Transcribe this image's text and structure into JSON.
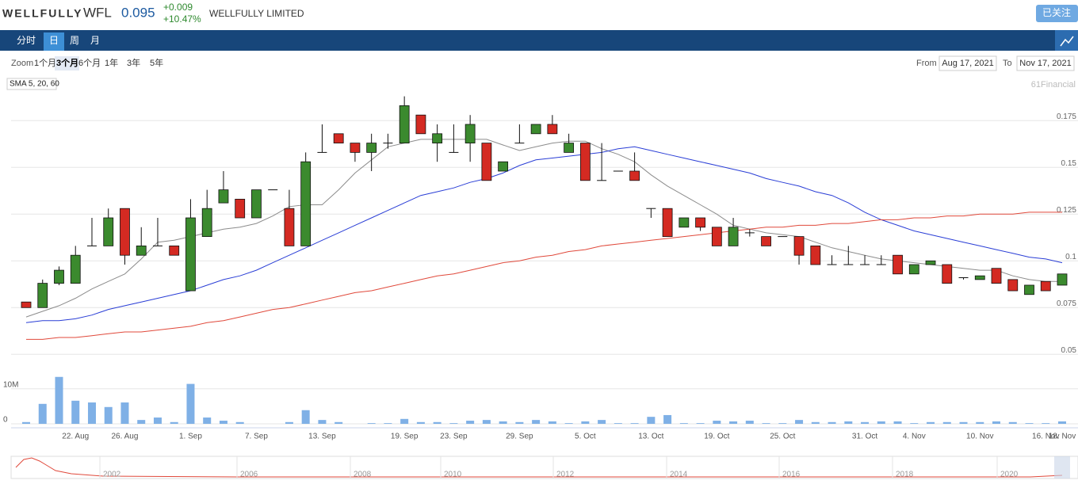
{
  "header": {
    "logo": "WELLFULLY",
    "symbol": "WFL",
    "price": 0.095,
    "change": "+0.009",
    "change_pct": "+10.47%",
    "name": "WELLFULLY LIMITED",
    "button": "已关注"
  },
  "tabs": {
    "items": [
      "分时",
      "日",
      "周",
      "月"
    ],
    "active": 1
  },
  "toolbar": {
    "zoom_label": "Zoom",
    "zoom": [
      "1个月",
      "3个月",
      "6个月",
      "1年",
      "3年",
      "5年"
    ],
    "zoom_active": 1,
    "from_label": "From",
    "from": "Aug 17, 2021",
    "to_label": "To",
    "to": "Nov 17, 2021"
  },
  "navigator": {
    "labels": [
      2002,
      2006,
      2008,
      2010,
      2012,
      2014,
      2016,
      2018,
      2020
    ]
  },
  "chart_data": {
    "type": "candlestick",
    "legend": "SMA 5, 20, 60",
    "credit": "61Financial",
    "categories": [
      null,
      null,
      null,
      "22. Aug",
      null,
      null,
      "26. Aug",
      null,
      null,
      null,
      "1. Sep",
      null,
      null,
      null,
      "7. Sep",
      null,
      null,
      null,
      "13. Sep",
      null,
      null,
      null,
      null,
      "19. Sep",
      null,
      null,
      "23. Sep",
      null,
      null,
      null,
      "29. Sep",
      null,
      null,
      null,
      "5. Oct",
      null,
      null,
      null,
      "13. Oct",
      null,
      null,
      null,
      "19. Oct",
      null,
      null,
      null,
      "25. Oct",
      null,
      null,
      null,
      null,
      "31. Oct",
      null,
      null,
      "4. Nov",
      null,
      null,
      null,
      "10. Nov",
      null,
      null,
      null,
      "16. Nov",
      "18. Nov"
    ],
    "open": [
      0.078,
      0.075,
      0.088,
      0.088,
      0.108,
      0.108,
      0.128,
      0.103,
      0.108,
      0.108,
      0.084,
      0.113,
      0.131,
      0.133,
      0.123,
      0.138,
      0.128,
      0.108,
      0.158,
      0.168,
      0.163,
      0.158,
      0.163,
      0.163,
      0.178,
      0.163,
      0.158,
      0.163,
      0.163,
      0.148,
      0.163,
      0.168,
      0.173,
      0.158,
      0.163,
      0.143,
      0.148,
      0.148,
      0.128,
      0.128,
      0.118,
      0.123,
      0.118,
      0.108,
      0.115,
      0.113,
      0.113,
      0.113,
      0.108,
      0.098,
      0.098,
      0.098,
      0.098,
      0.103,
      0.093,
      0.098,
      0.098,
      0.091,
      0.09,
      0.096,
      0.09,
      0.082,
      0.089,
      0.087
    ],
    "high": [
      0.078,
      0.09,
      0.097,
      0.108,
      0.123,
      0.128,
      0.128,
      0.118,
      0.123,
      0.108,
      0.133,
      0.138,
      0.148,
      0.133,
      0.138,
      0.138,
      0.138,
      0.158,
      0.173,
      0.168,
      0.163,
      0.168,
      0.168,
      0.188,
      0.178,
      0.173,
      0.173,
      0.178,
      0.163,
      0.153,
      0.173,
      0.173,
      0.178,
      0.168,
      0.163,
      0.163,
      0.148,
      0.158,
      0.128,
      0.128,
      0.123,
      0.123,
      0.118,
      0.123,
      0.117,
      0.113,
      0.113,
      0.113,
      0.108,
      0.103,
      0.108,
      0.103,
      0.103,
      0.103,
      0.098,
      0.1,
      0.098,
      0.091,
      0.092,
      0.096,
      0.09,
      0.087,
      0.089,
      0.093
    ],
    "low": [
      0.075,
      0.075,
      0.087,
      0.088,
      0.108,
      0.108,
      0.098,
      0.103,
      0.108,
      0.103,
      0.084,
      0.113,
      0.131,
      0.123,
      0.123,
      0.138,
      0.108,
      0.108,
      0.158,
      0.163,
      0.153,
      0.148,
      0.16,
      0.163,
      0.168,
      0.153,
      0.158,
      0.153,
      0.143,
      0.148,
      0.163,
      0.168,
      0.168,
      0.158,
      0.143,
      0.143,
      0.148,
      0.143,
      0.123,
      0.113,
      0.118,
      0.116,
      0.108,
      0.108,
      0.113,
      0.108,
      0.113,
      0.098,
      0.098,
      0.098,
      0.098,
      0.098,
      0.098,
      0.093,
      0.093,
      0.098,
      0.088,
      0.09,
      0.09,
      0.088,
      0.084,
      0.082,
      0.084,
      0.087
    ],
    "close": [
      0.075,
      0.088,
      0.095,
      0.103,
      0.108,
      0.123,
      0.103,
      0.108,
      0.108,
      0.103,
      0.123,
      0.128,
      0.138,
      0.123,
      0.138,
      0.138,
      0.108,
      0.153,
      0.158,
      0.163,
      0.158,
      0.163,
      0.163,
      0.183,
      0.168,
      0.168,
      0.158,
      0.173,
      0.143,
      0.153,
      0.163,
      0.173,
      0.168,
      0.163,
      0.143,
      0.143,
      0.148,
      0.143,
      0.128,
      0.113,
      0.123,
      0.118,
      0.108,
      0.118,
      0.115,
      0.108,
      0.113,
      0.103,
      0.098,
      0.098,
      0.098,
      0.098,
      0.098,
      0.093,
      0.098,
      0.1,
      0.088,
      0.091,
      0.092,
      0.088,
      0.084,
      0.087,
      0.084,
      0.093
    ],
    "up_color": "#3b8a2e",
    "down_color": "#d42a22",
    "overlays": [
      {
        "color": "#8c8c8c",
        "values": [
          0.07,
          0.073,
          0.076,
          0.08,
          0.085,
          0.089,
          0.093,
          0.101,
          0.11,
          0.111,
          0.113,
          0.115,
          0.117,
          0.118,
          0.12,
          0.124,
          0.129,
          0.13,
          0.13,
          0.138,
          0.147,
          0.154,
          0.161,
          0.163,
          0.165,
          0.165,
          0.165,
          0.165,
          0.165,
          0.162,
          0.159,
          0.161,
          0.163,
          0.164,
          0.164,
          0.16,
          0.157,
          0.153,
          0.146,
          0.14,
          0.135,
          0.13,
          0.125,
          0.119,
          0.117,
          0.115,
          0.114,
          0.113,
          0.11,
          0.107,
          0.105,
          0.103,
          0.101,
          0.1,
          0.099,
          0.098,
          0.097,
          0.096,
          0.095,
          0.095,
          0.092,
          0.09,
          0.089,
          0.089
        ]
      },
      {
        "color": "#2a3ed6",
        "values": [
          0.067,
          0.068,
          0.068,
          0.069,
          0.071,
          0.074,
          0.076,
          0.078,
          0.08,
          0.082,
          0.084,
          0.087,
          0.09,
          0.092,
          0.095,
          0.099,
          0.103,
          0.107,
          0.111,
          0.115,
          0.119,
          0.123,
          0.127,
          0.131,
          0.135,
          0.137,
          0.139,
          0.142,
          0.144,
          0.147,
          0.151,
          0.154,
          0.155,
          0.156,
          0.157,
          0.158,
          0.16,
          0.161,
          0.159,
          0.157,
          0.155,
          0.153,
          0.151,
          0.149,
          0.147,
          0.144,
          0.142,
          0.14,
          0.137,
          0.135,
          0.131,
          0.126,
          0.122,
          0.119,
          0.116,
          0.114,
          0.112,
          0.11,
          0.108,
          0.106,
          0.104,
          0.102,
          0.101,
          0.099
        ]
      },
      {
        "color": "#e0493b",
        "values": [
          0.058,
          0.058,
          0.059,
          0.059,
          0.06,
          0.061,
          0.062,
          0.062,
          0.063,
          0.064,
          0.065,
          0.067,
          0.068,
          0.07,
          0.072,
          0.074,
          0.075,
          0.077,
          0.079,
          0.081,
          0.083,
          0.084,
          0.086,
          0.088,
          0.09,
          0.092,
          0.093,
          0.095,
          0.097,
          0.099,
          0.1,
          0.102,
          0.103,
          0.105,
          0.106,
          0.108,
          0.109,
          0.11,
          0.111,
          0.112,
          0.113,
          0.114,
          0.115,
          0.116,
          0.117,
          0.118,
          0.118,
          0.119,
          0.119,
          0.12,
          0.12,
          0.121,
          0.122,
          0.122,
          0.123,
          0.123,
          0.124,
          0.124,
          0.125,
          0.125,
          0.125,
          0.126,
          0.126,
          0.126
        ]
      }
    ],
    "ylim": [
      0.048,
      0.198
    ],
    "yticks": [
      0.05,
      0.075,
      0.1,
      0.125,
      0.15,
      0.175
    ],
    "grid": true,
    "volume": [
      0.5,
      5.7,
      13.4,
      6.6,
      6.1,
      4.8,
      6.1,
      1.1,
      1.8,
      0.5,
      11.4,
      1.8,
      0.9,
      0.5,
      0,
      0,
      0.5,
      3.9,
      1.1,
      0.5,
      0,
      0.2,
      0.2,
      1.4,
      0.5,
      0.5,
      0.2,
      0.9,
      1.1,
      0.7,
      0.5,
      1.1,
      0.7,
      0.2,
      0.7,
      1.1,
      0.2,
      0.2,
      2.0,
      2.5,
      0.2,
      0.2,
      0.9,
      0.7,
      0.9,
      0.2,
      0.2,
      1.1,
      0.5,
      0.5,
      0.7,
      0.5,
      0.7,
      0.7,
      0.2,
      0.5,
      0.5,
      0.5,
      0.5,
      0.7,
      0.5,
      0.2,
      0.2,
      0.7
    ],
    "volume_color": "#7fb0e6",
    "vlim": [
      0,
      19
    ],
    "vticks": [
      0,
      {
        "value": 10,
        "label": "10M"
      }
    ]
  }
}
